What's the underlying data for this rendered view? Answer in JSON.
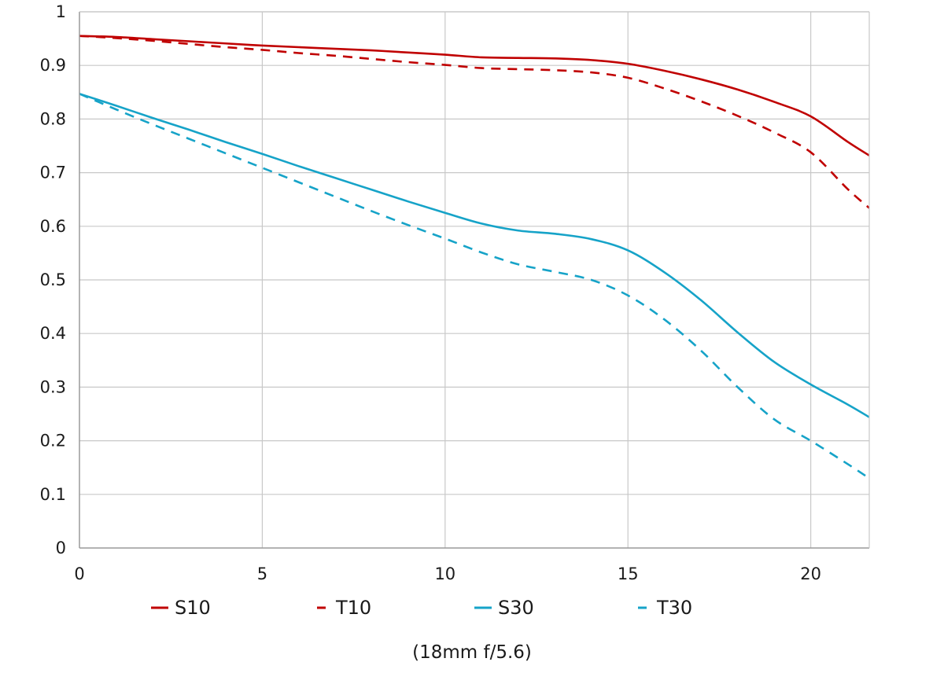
{
  "chart_data": {
    "type": "line",
    "title": "",
    "subtitle": "",
    "xlabel": "",
    "ylabel": "",
    "caption": "(18mm f/5.6)",
    "xlim": [
      0,
      21.6
    ],
    "ylim": [
      0,
      1
    ],
    "grid": true,
    "legend_position": "bottom",
    "x_ticks": [
      0,
      5,
      10,
      15,
      20
    ],
    "x_tick_labels": [
      "0",
      "5",
      "10",
      "15",
      "20"
    ],
    "y_ticks": [
      0,
      0.1,
      0.2,
      0.3,
      0.4,
      0.5,
      0.6,
      0.7,
      0.8,
      0.9,
      1
    ],
    "y_tick_labels": [
      "0",
      "0.1",
      "0.2",
      "0.3",
      "0.4",
      "0.5",
      "0.6",
      "0.7",
      "0.8",
      "0.9",
      "1"
    ],
    "series": [
      {
        "name": "S10",
        "color": "#c00000",
        "dash": "solid",
        "points": [
          [
            0,
            0.955
          ],
          [
            1,
            0.953
          ],
          [
            2,
            0.949
          ],
          [
            3,
            0.945
          ],
          [
            4,
            0.941
          ],
          [
            5,
            0.937
          ],
          [
            6,
            0.934
          ],
          [
            7,
            0.931
          ],
          [
            8,
            0.928
          ],
          [
            9,
            0.924
          ],
          [
            10,
            0.92
          ],
          [
            11,
            0.915
          ],
          [
            12,
            0.914
          ],
          [
            13,
            0.913
          ],
          [
            14,
            0.91
          ],
          [
            15,
            0.903
          ],
          [
            16,
            0.89
          ],
          [
            17,
            0.874
          ],
          [
            18,
            0.855
          ],
          [
            19,
            0.832
          ],
          [
            20,
            0.805
          ],
          [
            21,
            0.758
          ],
          [
            21.6,
            0.732
          ]
        ]
      },
      {
        "name": "T10",
        "color": "#c00000",
        "dash": "dashed",
        "points": [
          [
            0,
            0.955
          ],
          [
            1,
            0.951
          ],
          [
            2,
            0.946
          ],
          [
            3,
            0.94
          ],
          [
            4,
            0.934
          ],
          [
            5,
            0.929
          ],
          [
            6,
            0.923
          ],
          [
            7,
            0.918
          ],
          [
            8,
            0.912
          ],
          [
            9,
            0.906
          ],
          [
            10,
            0.901
          ],
          [
            11,
            0.895
          ],
          [
            12,
            0.893
          ],
          [
            13,
            0.891
          ],
          [
            14,
            0.887
          ],
          [
            15,
            0.877
          ],
          [
            16,
            0.857
          ],
          [
            17,
            0.833
          ],
          [
            18,
            0.806
          ],
          [
            19,
            0.775
          ],
          [
            20,
            0.738
          ],
          [
            21,
            0.67
          ],
          [
            21.6,
            0.634
          ]
        ]
      },
      {
        "name": "S30",
        "color": "#16a3c8",
        "dash": "solid",
        "points": [
          [
            0,
            0.847
          ],
          [
            1,
            0.825
          ],
          [
            2,
            0.802
          ],
          [
            3,
            0.78
          ],
          [
            4,
            0.757
          ],
          [
            5,
            0.735
          ],
          [
            6,
            0.712
          ],
          [
            7,
            0.69
          ],
          [
            8,
            0.668
          ],
          [
            9,
            0.646
          ],
          [
            10,
            0.625
          ],
          [
            11,
            0.605
          ],
          [
            12,
            0.592
          ],
          [
            13,
            0.586
          ],
          [
            14,
            0.576
          ],
          [
            15,
            0.555
          ],
          [
            16,
            0.514
          ],
          [
            17,
            0.462
          ],
          [
            18,
            0.402
          ],
          [
            19,
            0.347
          ],
          [
            20,
            0.305
          ],
          [
            21,
            0.268
          ],
          [
            21.6,
            0.244
          ]
        ]
      },
      {
        "name": "T30",
        "color": "#16a3c8",
        "dash": "dashed",
        "points": [
          [
            0,
            0.847
          ],
          [
            1,
            0.818
          ],
          [
            2,
            0.79
          ],
          [
            3,
            0.763
          ],
          [
            4,
            0.736
          ],
          [
            5,
            0.709
          ],
          [
            6,
            0.682
          ],
          [
            7,
            0.655
          ],
          [
            8,
            0.628
          ],
          [
            9,
            0.602
          ],
          [
            10,
            0.577
          ],
          [
            11,
            0.551
          ],
          [
            12,
            0.529
          ],
          [
            13,
            0.515
          ],
          [
            14,
            0.5
          ],
          [
            15,
            0.471
          ],
          [
            16,
            0.426
          ],
          [
            17,
            0.368
          ],
          [
            18,
            0.3
          ],
          [
            19,
            0.24
          ],
          [
            20,
            0.2
          ],
          [
            21,
            0.157
          ],
          [
            21.6,
            0.13
          ]
        ]
      }
    ]
  }
}
